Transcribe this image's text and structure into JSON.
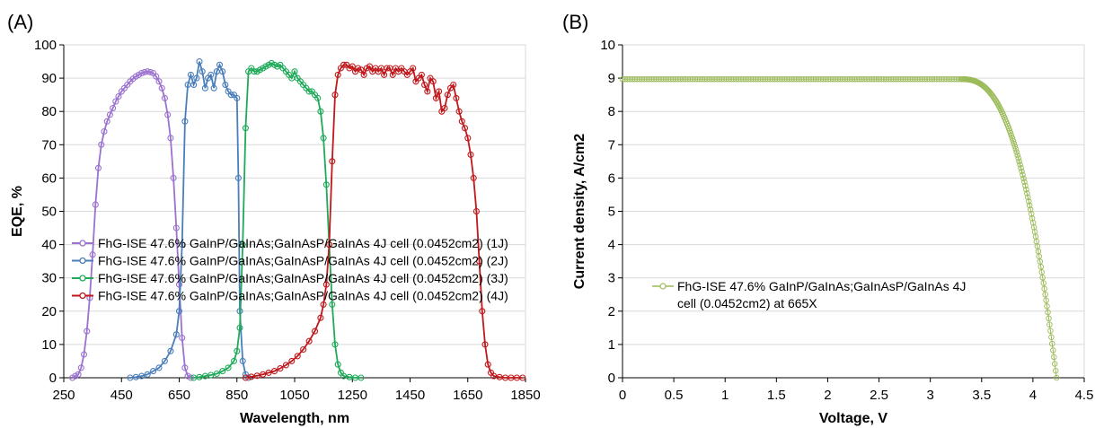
{
  "chart_data": [
    {
      "type": "line",
      "panel_label": "(A)",
      "xlabel": "Wavelength, nm",
      "ylabel": "EQE, %",
      "xlim": [
        250,
        1850
      ],
      "ylim": [
        0,
        100
      ],
      "xticks": [
        250,
        450,
        650,
        850,
        1050,
        1250,
        1450,
        1650,
        1850
      ],
      "yticks": [
        0,
        10,
        20,
        30,
        40,
        50,
        60,
        70,
        80,
        90,
        100
      ],
      "grid": "horizontal",
      "legend_position": "lower-left",
      "series": [
        {
          "name": "FhG-ISE 47.6% GaInP/GaInAs;GaInAsP/GaInAs 4J cell (0.0452cm2) (1J)",
          "color": "#9b72cf",
          "points": [
            [
              280,
              0
            ],
            [
              290,
              0.5
            ],
            [
              300,
              1
            ],
            [
              310,
              3
            ],
            [
              320,
              7
            ],
            [
              330,
              14
            ],
            [
              340,
              24
            ],
            [
              350,
              37
            ],
            [
              360,
              52
            ],
            [
              370,
              63
            ],
            [
              380,
              70
            ],
            [
              390,
              74
            ],
            [
              400,
              77
            ],
            [
              410,
              79
            ],
            [
              420,
              81
            ],
            [
              430,
              83
            ],
            [
              440,
              84.5
            ],
            [
              450,
              86
            ],
            [
              460,
              87
            ],
            [
              470,
              88
            ],
            [
              480,
              89
            ],
            [
              490,
              89.8
            ],
            [
              500,
              90.5
            ],
            [
              510,
              91
            ],
            [
              520,
              91.5
            ],
            [
              530,
              91.8
            ],
            [
              540,
              92
            ],
            [
              550,
              91.8
            ],
            [
              560,
              91.5
            ],
            [
              570,
              90.5
            ],
            [
              580,
              89
            ],
            [
              590,
              87
            ],
            [
              600,
              84
            ],
            [
              610,
              79
            ],
            [
              620,
              72
            ],
            [
              630,
              60
            ],
            [
              640,
              45
            ],
            [
              650,
              28
            ],
            [
              660,
              12
            ],
            [
              670,
              3
            ],
            [
              680,
              0.5
            ],
            [
              690,
              0
            ]
          ]
        },
        {
          "name": "FhG-ISE 47.6% GaInP/GaInAs;GaInAsP/GaInAs 4J cell (0.0452cm2) (2J)",
          "color": "#4a7ebb",
          "points": [
            [
              480,
              0
            ],
            [
              500,
              0.2
            ],
            [
              520,
              0.5
            ],
            [
              540,
              1
            ],
            [
              560,
              2
            ],
            [
              580,
              3
            ],
            [
              600,
              5
            ],
            [
              620,
              8
            ],
            [
              640,
              13
            ],
            [
              650,
              20
            ],
            [
              660,
              40
            ],
            [
              670,
              77
            ],
            [
              680,
              88
            ],
            [
              690,
              91
            ],
            [
              700,
              88
            ],
            [
              710,
              90
            ],
            [
              720,
              95
            ],
            [
              730,
              92
            ],
            [
              740,
              87
            ],
            [
              750,
              90
            ],
            [
              760,
              91
            ],
            [
              770,
              87
            ],
            [
              780,
              92
            ],
            [
              790,
              94
            ],
            [
              800,
              92
            ],
            [
              810,
              88
            ],
            [
              820,
              86
            ],
            [
              830,
              85
            ],
            [
              840,
              85
            ],
            [
              850,
              84
            ],
            [
              855,
              60
            ],
            [
              860,
              20
            ],
            [
              870,
              5
            ],
            [
              880,
              1
            ],
            [
              890,
              0
            ]
          ]
        },
        {
          "name": "FhG-ISE 47.6% GaInP/GaInAs;GaInAsP/GaInAs 4J cell (0.0452cm2) (3J)",
          "color": "#1faa59",
          "points": [
            [
              700,
              0
            ],
            [
              720,
              0.2
            ],
            [
              740,
              0.5
            ],
            [
              760,
              0.8
            ],
            [
              780,
              1.2
            ],
            [
              800,
              2
            ],
            [
              820,
              3
            ],
            [
              840,
              5
            ],
            [
              850,
              8
            ],
            [
              860,
              15
            ],
            [
              870,
              40
            ],
            [
              880,
              75
            ],
            [
              890,
              92
            ],
            [
              900,
              93
            ],
            [
              910,
              92
            ],
            [
              920,
              92
            ],
            [
              930,
              92.5
            ],
            [
              940,
              93
            ],
            [
              950,
              93.5
            ],
            [
              960,
              94
            ],
            [
              970,
              94.5
            ],
            [
              980,
              94
            ],
            [
              990,
              93.5
            ],
            [
              1000,
              94
            ],
            [
              1010,
              93
            ],
            [
              1020,
              92
            ],
            [
              1030,
              91
            ],
            [
              1040,
              90
            ],
            [
              1050,
              92
            ],
            [
              1060,
              90
            ],
            [
              1070,
              89
            ],
            [
              1080,
              88
            ],
            [
              1090,
              87
            ],
            [
              1100,
              86
            ],
            [
              1110,
              86
            ],
            [
              1120,
              85
            ],
            [
              1130,
              84
            ],
            [
              1140,
              80
            ],
            [
              1150,
              72
            ],
            [
              1160,
              58
            ],
            [
              1170,
              40
            ],
            [
              1180,
              22
            ],
            [
              1190,
              10
            ],
            [
              1200,
              4
            ],
            [
              1210,
              1.5
            ],
            [
              1220,
              0.5
            ],
            [
              1240,
              0.2
            ],
            [
              1260,
              0
            ],
            [
              1280,
              0
            ]
          ]
        },
        {
          "name": "FhG-ISE 47.6% GaInP/GaInAs;GaInAsP/GaInAs 4J cell (0.0452cm2) (4J)",
          "color": "#c0181b",
          "points": [
            [
              880,
              0
            ],
            [
              900,
              0.3
            ],
            [
              920,
              0.6
            ],
            [
              940,
              1
            ],
            [
              960,
              1.5
            ],
            [
              980,
              2
            ],
            [
              1000,
              2.8
            ],
            [
              1020,
              3.8
            ],
            [
              1040,
              5
            ],
            [
              1060,
              6.5
            ],
            [
              1080,
              8.5
            ],
            [
              1100,
              11
            ],
            [
              1120,
              14
            ],
            [
              1140,
              18
            ],
            [
              1150,
              22
            ],
            [
              1160,
              28
            ],
            [
              1170,
              40
            ],
            [
              1180,
              65
            ],
            [
              1190,
              85
            ],
            [
              1200,
              91
            ],
            [
              1210,
              93
            ],
            [
              1220,
              94
            ],
            [
              1230,
              94
            ],
            [
              1240,
              93
            ],
            [
              1250,
              93.5
            ],
            [
              1260,
              92
            ],
            [
              1270,
              93
            ],
            [
              1280,
              92.5
            ],
            [
              1290,
              91
            ],
            [
              1300,
              93
            ],
            [
              1310,
              93.5
            ],
            [
              1320,
              92
            ],
            [
              1330,
              93
            ],
            [
              1340,
              92
            ],
            [
              1350,
              93
            ],
            [
              1360,
              91
            ],
            [
              1370,
              93
            ],
            [
              1380,
              93
            ],
            [
              1390,
              91
            ],
            [
              1400,
              93
            ],
            [
              1410,
              92
            ],
            [
              1420,
              93
            ],
            [
              1430,
              92
            ],
            [
              1440,
              91
            ],
            [
              1450,
              92
            ],
            [
              1460,
              93
            ],
            [
              1470,
              89
            ],
            [
              1480,
              90
            ],
            [
              1490,
              91
            ],
            [
              1500,
              88
            ],
            [
              1510,
              86
            ],
            [
              1520,
              90
            ],
            [
              1530,
              89
            ],
            [
              1540,
              84
            ],
            [
              1550,
              86
            ],
            [
              1560,
              80
            ],
            [
              1570,
              81
            ],
            [
              1580,
              85
            ],
            [
              1590,
              87
            ],
            [
              1600,
              88
            ],
            [
              1610,
              84
            ],
            [
              1620,
              80
            ],
            [
              1630,
              77
            ],
            [
              1640,
              75
            ],
            [
              1650,
              72
            ],
            [
              1660,
              67
            ],
            [
              1670,
              60
            ],
            [
              1680,
              50
            ],
            [
              1690,
              35
            ],
            [
              1700,
              20
            ],
            [
              1710,
              10
            ],
            [
              1720,
              4
            ],
            [
              1730,
              1.5
            ],
            [
              1740,
              0.5
            ],
            [
              1760,
              0.2
            ],
            [
              1780,
              0
            ],
            [
              1800,
              0
            ],
            [
              1820,
              0
            ],
            [
              1840,
              0
            ]
          ]
        }
      ]
    },
    {
      "type": "scatter",
      "panel_label": "(B)",
      "xlabel": "Voltage, V",
      "ylabel": "Current density, A/cm2",
      "xlim": [
        0,
        4.5
      ],
      "ylim": [
        0,
        10
      ],
      "xticks": [
        0,
        0.5,
        1,
        1.5,
        2,
        2.5,
        3,
        3.5,
        4,
        4.5
      ],
      "yticks": [
        0,
        1,
        2,
        3,
        4,
        5,
        6,
        7,
        8,
        9,
        10
      ],
      "grid": "horizontal",
      "legend_position": "center-left",
      "series": [
        {
          "name": "FhG-ISE 47.6% GaInP/GaInAs;GaInAsP/GaInAs 4J cell (0.0452cm2) at 665X",
          "legend_lines": [
            "FhG-ISE 47.6% GaInP/GaInAs;GaInAsP/GaInAs 4J",
            "cell (0.0452cm2) at 665X"
          ],
          "color": "#9bbb59",
          "isc": 8.97,
          "voc": 4.23,
          "knee_v": 3.3,
          "n_points": 200
        }
      ]
    }
  ]
}
